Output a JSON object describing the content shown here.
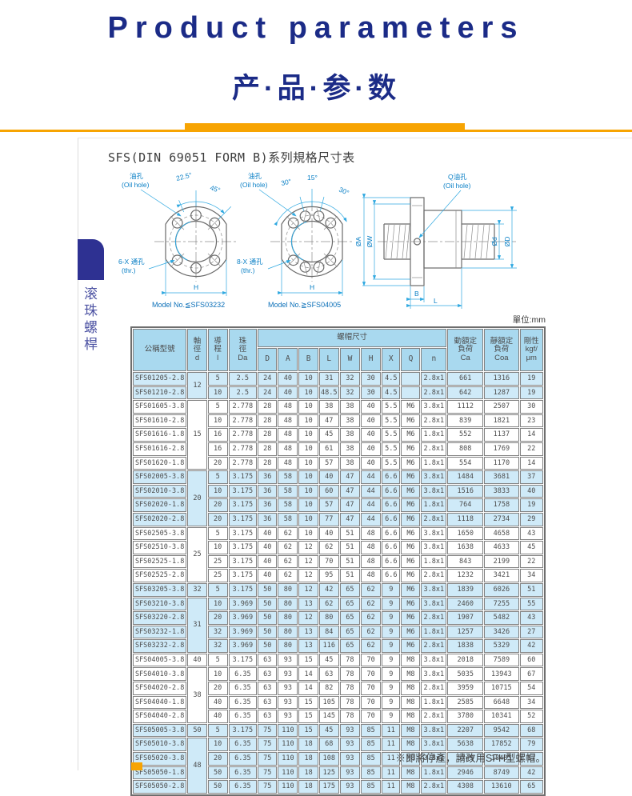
{
  "page": {
    "title_en": "Product parameters",
    "title_cn": "产·品·参·数",
    "section_title": "SFS(DIN 69051 FORM B)系列規格尺寸表",
    "sidebar_vertical_label": "滚珠螺桿",
    "unit_label": "單位:mm",
    "footnote": "※即將停產，請改用SFH型螺帽。",
    "accent_orange": "#F7A402",
    "navy": "#1B2B87",
    "header_blue": "#A9D9EF",
    "row_blue": "#CFEAF8",
    "drawing_cyan": "#2FA8E0"
  },
  "diagram": {
    "oil_hole_cn": "油孔",
    "oil_hole_en": "(Oil hole)",
    "angle_225": "22.5°",
    "angle_45": "45°",
    "angle_30a": "30°",
    "angle_15": "15°",
    "angle_30b": "30°",
    "thr6_cn": "6-X 通孔",
    "thr8_cn": "8-X 通孔",
    "thr_en": "(thr.)",
    "h_label_left": "H",
    "h_label_mid": "H",
    "model_left": "Model No.≦SFS03232",
    "model_right": "Model No.≧SFS04005",
    "q_oil_cn": "Q油孔",
    "q_oil_en": "(Oil hole)",
    "dia_a": "ØA",
    "dia_w": "ØW",
    "dia_d_small": "Ød",
    "dia_d_big": "ØD",
    "b_label": "B",
    "l_label": "L"
  },
  "table": {
    "headers": {
      "model": "公稱型號",
      "shaft_dia": "軸\n徑\nd",
      "lead": "導\n程\nl",
      "ball_dia": "珠\n徑\nDa",
      "nut_dims": "螺帽尺寸",
      "dynamic_load": "動額定\n負荷\nCa",
      "static_load": "靜額定\n負荷\nCoa",
      "rigidity": "剛性\nkgf/\nμm"
    },
    "nut_letters": [
      "D",
      "A",
      "B",
      "L",
      "W",
      "H",
      "X",
      "Q",
      "n"
    ],
    "rows": [
      {
        "model": "SFS01205-2.8",
        "d": "12",
        "dspan": 2,
        "shade": "blue",
        "v": [
          "5",
          "2.5",
          "24",
          "40",
          "10",
          "31",
          "32",
          "30",
          "4.5",
          "",
          "2.8x1",
          "661",
          "1316",
          "19"
        ]
      },
      {
        "model": "SFS01210-2.8",
        "shade": "blue",
        "v": [
          "10",
          "2.5",
          "24",
          "40",
          "10",
          "48.5",
          "32",
          "30",
          "4.5",
          "",
          "2.8x1",
          "642",
          "1287",
          "19"
        ]
      },
      {
        "model": "SFS01605-3.8",
        "d": "15",
        "dspan": 5,
        "shade": "white",
        "v": [
          "5",
          "2.778",
          "28",
          "48",
          "10",
          "38",
          "38",
          "40",
          "5.5",
          "M6",
          "3.8x1",
          "1112",
          "2507",
          "30"
        ]
      },
      {
        "model": "SFS01610-2.8",
        "shade": "white",
        "v": [
          "10",
          "2.778",
          "28",
          "48",
          "10",
          "47",
          "38",
          "40",
          "5.5",
          "M6",
          "2.8x1",
          "839",
          "1821",
          "23"
        ]
      },
      {
        "model": "SFS01616-1.8",
        "shade": "white",
        "v": [
          "16",
          "2.778",
          "28",
          "48",
          "10",
          "45",
          "38",
          "40",
          "5.5",
          "M6",
          "1.8x1",
          "552",
          "1137",
          "14"
        ]
      },
      {
        "model": "SFS01616-2.8",
        "shade": "white",
        "v": [
          "16",
          "2.778",
          "28",
          "48",
          "10",
          "61",
          "38",
          "40",
          "5.5",
          "M6",
          "2.8x1",
          "808",
          "1769",
          "22"
        ]
      },
      {
        "model": "SFS01620-1.8",
        "shade": "white",
        "v": [
          "20",
          "2.778",
          "28",
          "48",
          "10",
          "57",
          "38",
          "40",
          "5.5",
          "M6",
          "1.8x1",
          "554",
          "1170",
          "14"
        ]
      },
      {
        "model": "SFS02005-3.8",
        "d": "20",
        "dspan": 4,
        "shade": "blue",
        "v": [
          "5",
          "3.175",
          "36",
          "58",
          "10",
          "40",
          "47",
          "44",
          "6.6",
          "M6",
          "3.8x1",
          "1484",
          "3681",
          "37"
        ]
      },
      {
        "model": "SFS02010-3.8",
        "shade": "blue",
        "v": [
          "10",
          "3.175",
          "36",
          "58",
          "10",
          "60",
          "47",
          "44",
          "6.6",
          "M6",
          "3.8x1",
          "1516",
          "3833",
          "40"
        ]
      },
      {
        "model": "SFS02020-1.8",
        "shade": "blue",
        "v": [
          "20",
          "3.175",
          "36",
          "58",
          "10",
          "57",
          "47",
          "44",
          "6.6",
          "M6",
          "1.8x1",
          "764",
          "1758",
          "19"
        ]
      },
      {
        "model": "SFS02020-2.8",
        "shade": "blue",
        "v": [
          "20",
          "3.175",
          "36",
          "58",
          "10",
          "77",
          "47",
          "44",
          "6.6",
          "M6",
          "2.8x1",
          "1118",
          "2734",
          "29"
        ]
      },
      {
        "model": "SFS02505-3.8",
        "d": "25",
        "dspan": 4,
        "shade": "white",
        "v": [
          "5",
          "3.175",
          "40",
          "62",
          "10",
          "40",
          "51",
          "48",
          "6.6",
          "M6",
          "3.8x1",
          "1650",
          "4658",
          "43"
        ]
      },
      {
        "model": "SFS02510-3.8",
        "shade": "white",
        "v": [
          "10",
          "3.175",
          "40",
          "62",
          "12",
          "62",
          "51",
          "48",
          "6.6",
          "M6",
          "3.8x1",
          "1638",
          "4633",
          "45"
        ]
      },
      {
        "model": "SFS02525-1.8",
        "shade": "white",
        "v": [
          "25",
          "3.175",
          "40",
          "62",
          "12",
          "70",
          "51",
          "48",
          "6.6",
          "M6",
          "1.8x1",
          "843",
          "2199",
          "22"
        ]
      },
      {
        "model": "SFS02525-2.8",
        "shade": "white",
        "v": [
          "25",
          "3.175",
          "40",
          "62",
          "12",
          "95",
          "51",
          "48",
          "6.6",
          "M6",
          "2.8x1",
          "1232",
          "3421",
          "34"
        ]
      },
      {
        "model": "SFS03205-3.8",
        "d": "32",
        "dspan": 1,
        "shade": "blue",
        "v": [
          "5",
          "3.175",
          "50",
          "80",
          "12",
          "42",
          "65",
          "62",
          "9",
          "M6",
          "3.8x1",
          "1839",
          "6026",
          "51"
        ]
      },
      {
        "model": "SFS03210-3.8",
        "d": "31",
        "dspan": 4,
        "shade": "blue",
        "v": [
          "10",
          "3.969",
          "50",
          "80",
          "13",
          "62",
          "65",
          "62",
          "9",
          "M6",
          "3.8x1",
          "2460",
          "7255",
          "55"
        ]
      },
      {
        "model": "SFS03220-2.8",
        "shade": "blue",
        "v": [
          "20",
          "3.969",
          "50",
          "80",
          "12",
          "80",
          "65",
          "62",
          "9",
          "M6",
          "2.8x1",
          "1907",
          "5482",
          "43"
        ]
      },
      {
        "model": "SFS03232-1.8",
        "shade": "blue",
        "v": [
          "32",
          "3.969",
          "50",
          "80",
          "13",
          "84",
          "65",
          "62",
          "9",
          "M6",
          "1.8x1",
          "1257",
          "3426",
          "27"
        ]
      },
      {
        "model": "SFS03232-2.8",
        "shade": "blue",
        "v": [
          "32",
          "3.969",
          "50",
          "80",
          "13",
          "116",
          "65",
          "62",
          "9",
          "M6",
          "2.8x1",
          "1838",
          "5329",
          "42"
        ]
      },
      {
        "model": "SFS04005-3.8",
        "d": "40",
        "dspan": 1,
        "shade": "white",
        "v": [
          "5",
          "3.175",
          "63",
          "93",
          "15",
          "45",
          "78",
          "70",
          "9",
          "M8",
          "3.8x1",
          "2018",
          "7589",
          "60"
        ]
      },
      {
        "model": "SFS04010-3.8",
        "d": "38",
        "dspan": 4,
        "shade": "white",
        "v": [
          "10",
          "6.35",
          "63",
          "93",
          "14",
          "63",
          "78",
          "70",
          "9",
          "M8",
          "3.8x1",
          "5035",
          "13943",
          "67"
        ]
      },
      {
        "model": "SFS04020-2.8",
        "shade": "white",
        "v": [
          "20",
          "6.35",
          "63",
          "93",
          "14",
          "82",
          "78",
          "70",
          "9",
          "M8",
          "2.8x1",
          "3959",
          "10715",
          "54"
        ]
      },
      {
        "model": "SFS04040-1.8",
        "shade": "white",
        "v": [
          "40",
          "6.35",
          "63",
          "93",
          "15",
          "105",
          "78",
          "70",
          "9",
          "M8",
          "1.8x1",
          "2585",
          "6648",
          "34"
        ]
      },
      {
        "model": "SFS04040-2.8",
        "shade": "white",
        "v": [
          "40",
          "6.35",
          "63",
          "93",
          "15",
          "145",
          "78",
          "70",
          "9",
          "M8",
          "2.8x1",
          "3780",
          "10341",
          "52"
        ]
      },
      {
        "model": "SFS05005-3.8",
        "d": "50",
        "dspan": 1,
        "shade": "blue",
        "v": [
          "5",
          "3.175",
          "75",
          "110",
          "15",
          "45",
          "93",
          "85",
          "11",
          "M8",
          "3.8x1",
          "2207",
          "9542",
          "68"
        ]
      },
      {
        "model": "SFS05010-3.8",
        "d": "48",
        "dspan": 4,
        "shade": "blue",
        "v": [
          "10",
          "6.35",
          "75",
          "110",
          "18",
          "68",
          "93",
          "85",
          "11",
          "M8",
          "3.8x1",
          "5638",
          "17852",
          "79"
        ]
      },
      {
        "model": "SFS05020-3.8",
        "shade": "blue",
        "v": [
          "20",
          "6.35",
          "75",
          "110",
          "18",
          "108",
          "93",
          "85",
          "11",
          "M8",
          "3.8x1",
          "5749",
          "18485",
          "87"
        ]
      },
      {
        "model": "SFS05050-1.8",
        "shade": "blue",
        "v": [
          "50",
          "6.35",
          "75",
          "110",
          "18",
          "125",
          "93",
          "85",
          "11",
          "M8",
          "1.8x1",
          "2946",
          "8749",
          "42"
        ]
      },
      {
        "model": "SFS05050-2.8",
        "shade": "blue",
        "v": [
          "50",
          "6.35",
          "75",
          "110",
          "18",
          "175",
          "93",
          "85",
          "11",
          "M8",
          "2.8x1",
          "4308",
          "13610",
          "65"
        ]
      }
    ]
  }
}
